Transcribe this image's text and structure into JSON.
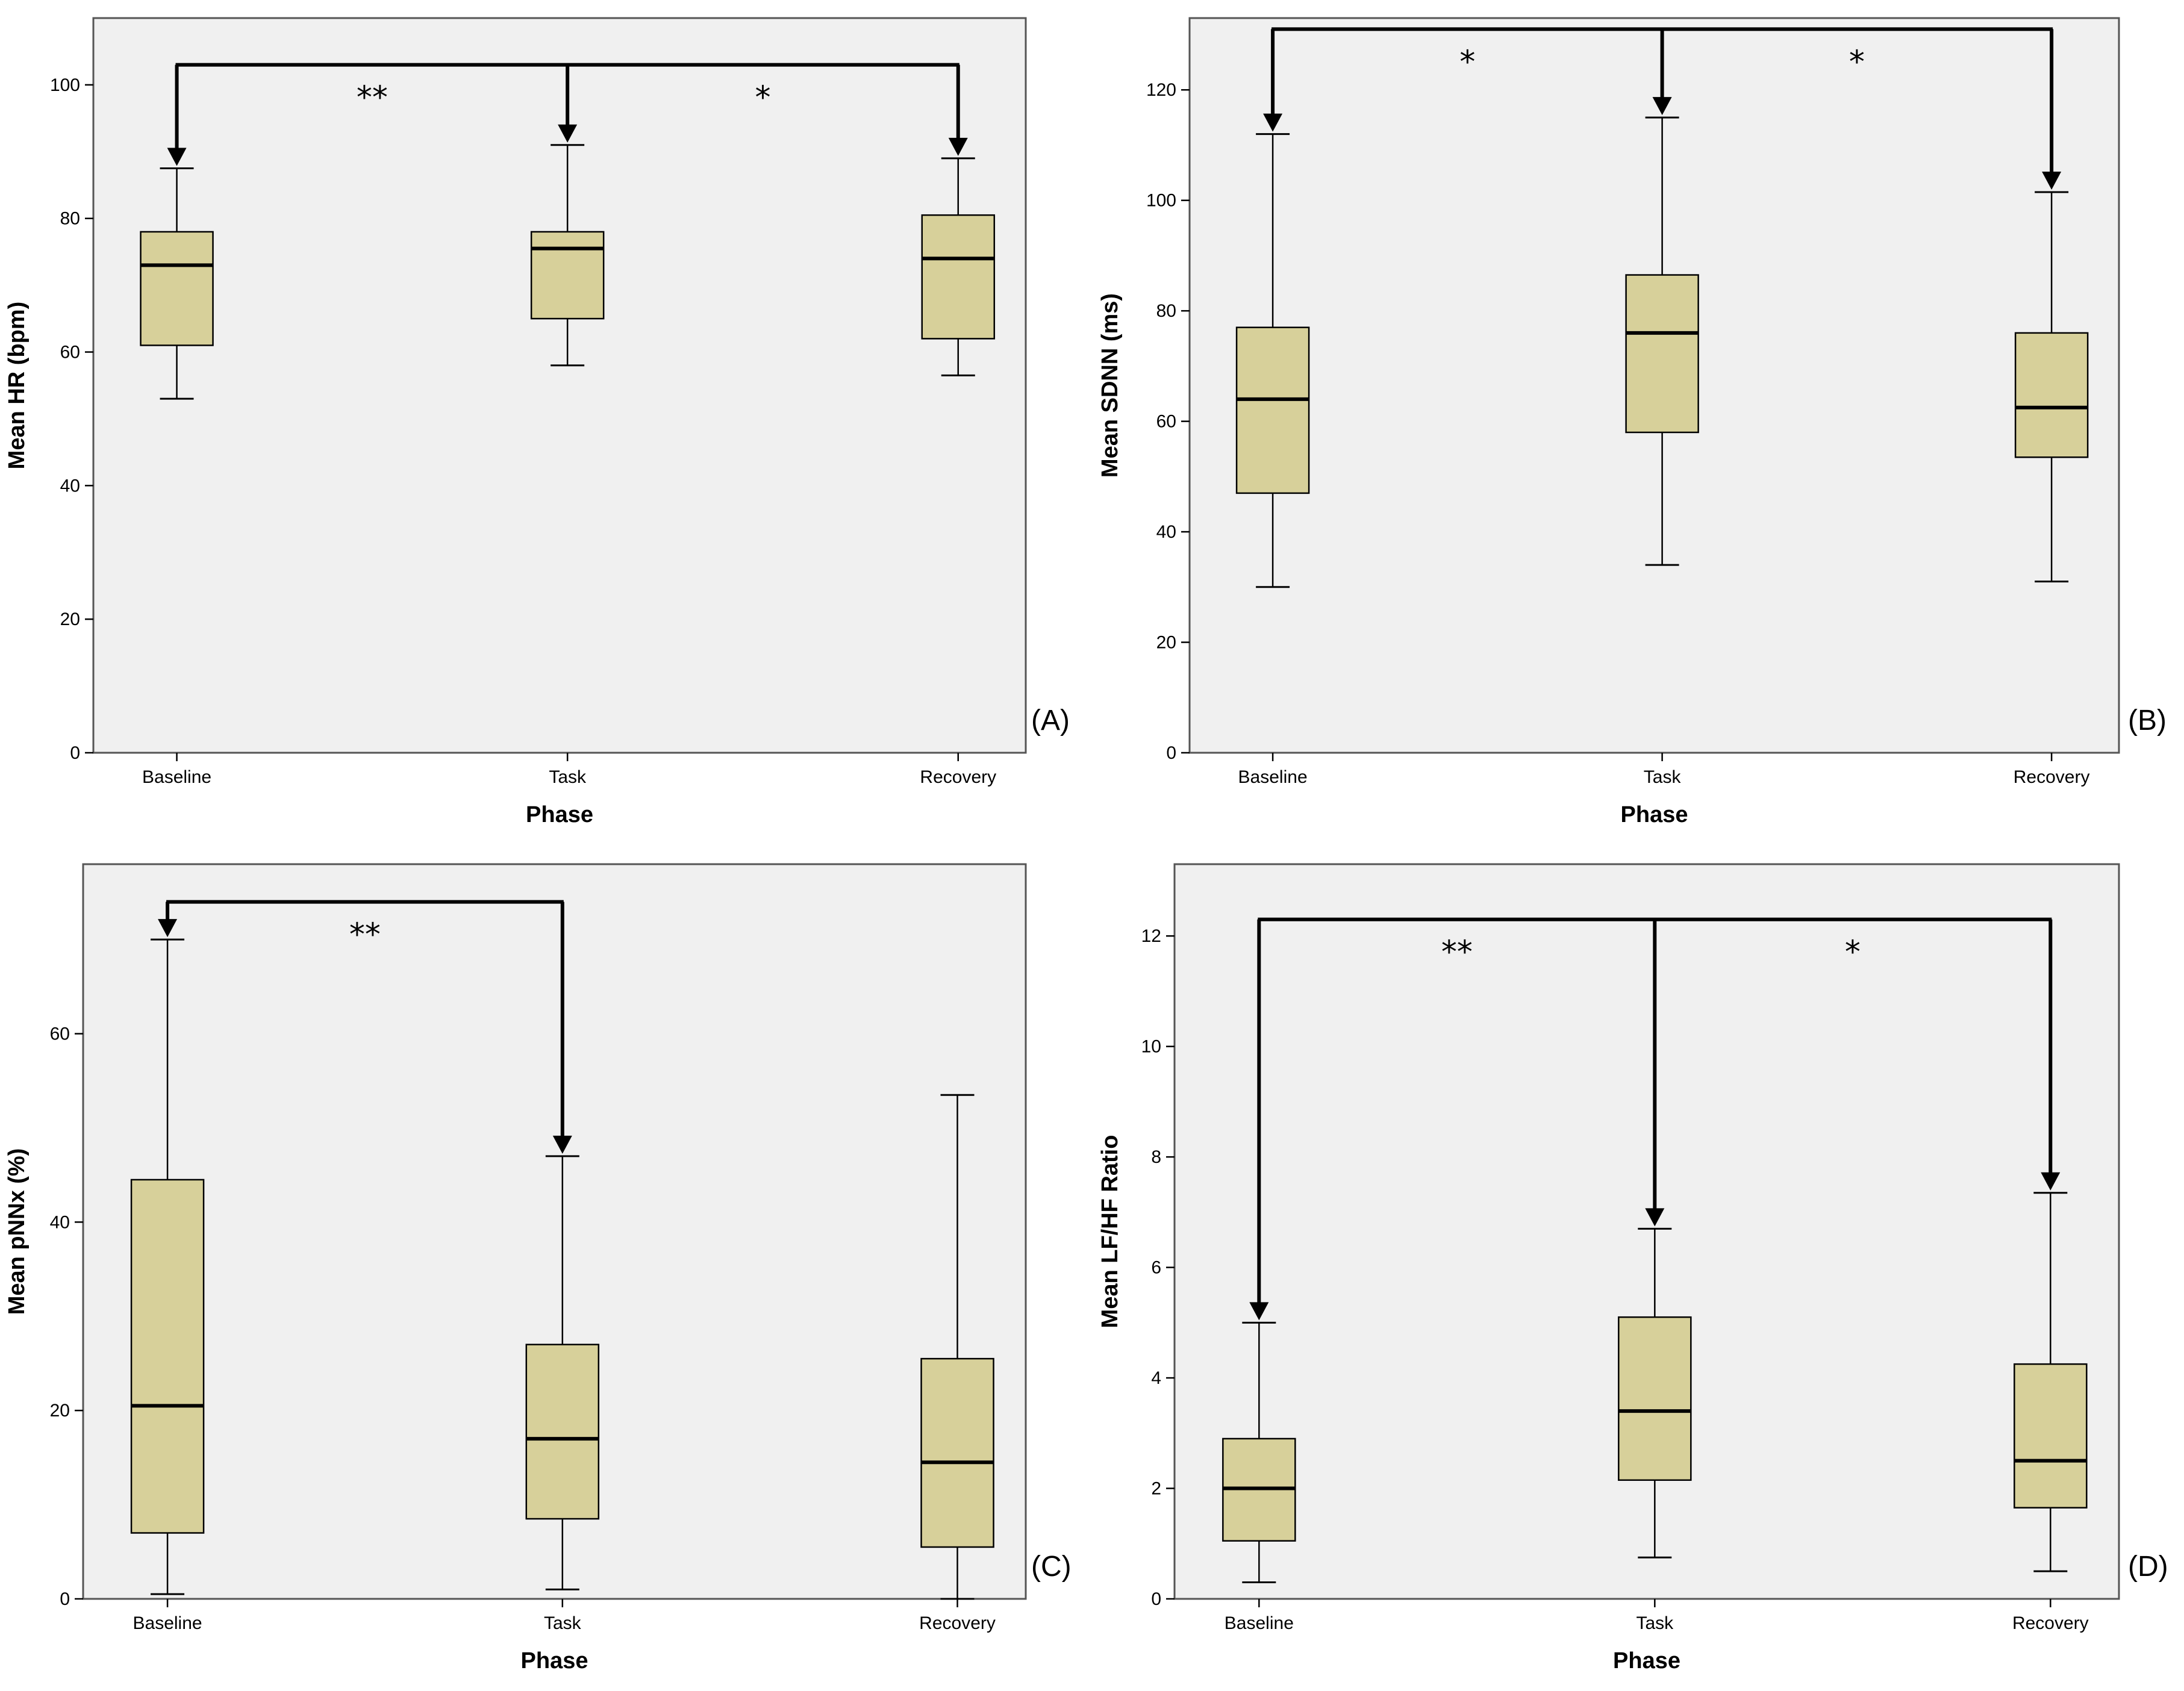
{
  "chart_data": [
    {
      "type": "boxplot",
      "panel_label": "(A)",
      "xlabel": "Phase",
      "ylabel": "Mean HR (bpm)",
      "ylim": [
        0,
        110
      ],
      "yticks": [
        0,
        20,
        40,
        60,
        80,
        100
      ],
      "categories": [
        "Baseline",
        "Task",
        "Recovery"
      ],
      "boxes": [
        {
          "min": 53,
          "q1": 61,
          "median": 73,
          "q3": 78,
          "max": 87.5
        },
        {
          "min": 58,
          "q1": 65,
          "median": 75.5,
          "q3": 78,
          "max": 91
        },
        {
          "min": 56.5,
          "q1": 62,
          "median": 74,
          "q3": 80.5,
          "max": 89
        }
      ],
      "significance": {
        "bracket_y": 103,
        "arrows": [
          {
            "cat": 0,
            "to": 87.5
          },
          {
            "cat": 1,
            "to": 91
          },
          {
            "cat": 2,
            "to": 89
          }
        ],
        "labels": [
          {
            "text": "**",
            "at": 0.5
          },
          {
            "text": "*",
            "at": 1.5
          }
        ]
      }
    },
    {
      "type": "boxplot",
      "panel_label": "(B)",
      "xlabel": "Phase",
      "ylabel": "Mean SDNN (ms)",
      "ylim": [
        0,
        133
      ],
      "yticks": [
        0,
        20,
        40,
        60,
        80,
        100,
        120
      ],
      "categories": [
        "Baseline",
        "Task",
        "Recovery"
      ],
      "boxes": [
        {
          "min": 30,
          "q1": 47,
          "median": 64,
          "q3": 77,
          "max": 112
        },
        {
          "min": 34,
          "q1": 58,
          "median": 76,
          "q3": 86.5,
          "max": 115
        },
        {
          "min": 31,
          "q1": 53.5,
          "median": 62.5,
          "q3": 76,
          "max": 101.5
        }
      ],
      "significance": {
        "bracket_y": 131,
        "arrows": [
          {
            "cat": 0,
            "to": 112
          },
          {
            "cat": 1,
            "to": 115
          },
          {
            "cat": 2,
            "to": 101.5
          }
        ],
        "labels": [
          {
            "text": "*",
            "at": 0.5
          },
          {
            "text": "*",
            "at": 1.5
          }
        ]
      }
    },
    {
      "type": "boxplot",
      "panel_label": "(C)",
      "xlabel": "Phase",
      "ylabel": "Mean pNNx (%)",
      "ylim": [
        0,
        78
      ],
      "yticks": [
        0,
        20,
        40,
        60
      ],
      "categories": [
        "Baseline",
        "Task",
        "Recovery"
      ],
      "boxes": [
        {
          "min": 0.5,
          "q1": 7,
          "median": 20.5,
          "q3": 44.5,
          "max": 70
        },
        {
          "min": 1,
          "q1": 8.5,
          "median": 17,
          "q3": 27,
          "max": 47
        },
        {
          "min": 0,
          "q1": 5.5,
          "median": 14.5,
          "q3": 25.5,
          "max": 53.5
        }
      ],
      "significance": {
        "bracket_y": 74,
        "arrows": [
          {
            "cat": 0,
            "to": 70
          },
          {
            "cat": 1,
            "to": 47
          }
        ],
        "labels": [
          {
            "text": "**",
            "at": 0.5
          }
        ]
      }
    },
    {
      "type": "boxplot",
      "panel_label": "(D)",
      "xlabel": "Phase",
      "ylabel": "Mean LF/HF Ratio",
      "ylim": [
        0,
        13.3
      ],
      "yticks": [
        0,
        2,
        4,
        6,
        8,
        10,
        12
      ],
      "categories": [
        "Baseline",
        "Task",
        "Recovery"
      ],
      "boxes": [
        {
          "min": 0.3,
          "q1": 1.05,
          "median": 2,
          "q3": 2.9,
          "max": 5
        },
        {
          "min": 0.75,
          "q1": 2.15,
          "median": 3.4,
          "q3": 5.1,
          "max": 6.7
        },
        {
          "min": 0.5,
          "q1": 1.65,
          "median": 2.5,
          "q3": 4.25,
          "max": 7.35
        }
      ],
      "significance": {
        "bracket_y": 12.3,
        "arrows": [
          {
            "cat": 0,
            "to": 5
          },
          {
            "cat": 1,
            "to": 6.7
          },
          {
            "cat": 2,
            "to": 7.35
          }
        ],
        "labels": [
          {
            "text": "**",
            "at": 0.5
          },
          {
            "text": "*",
            "at": 1.5
          }
        ]
      }
    }
  ],
  "colors": {
    "plot_background": "#f0f0f0",
    "box_fill": "#d7d09a",
    "stroke": "#000000"
  }
}
